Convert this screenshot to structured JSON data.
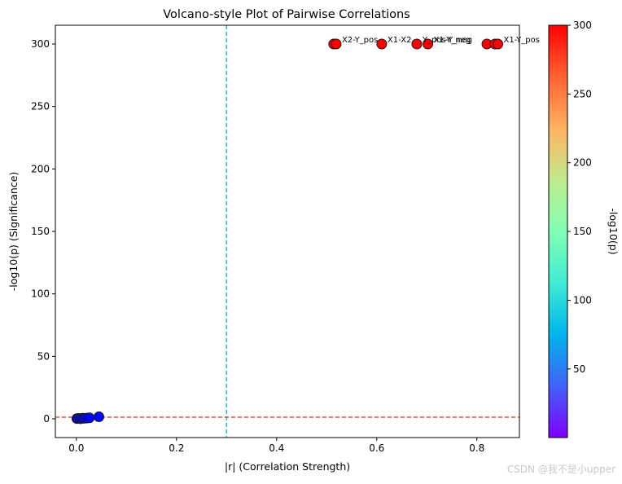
{
  "chart_data": {
    "type": "scatter",
    "title": "Volcano-style Plot of Pairwise Correlations",
    "xlabel": "|r| (Correlation Strength)",
    "ylabel": "-log10(p) (Significance)",
    "xlim": [
      -0.042,
      0.885
    ],
    "ylim": [
      -15,
      315
    ],
    "xticks": [
      0.0,
      0.2,
      0.4,
      0.6,
      0.8
    ],
    "xtick_labels": [
      "0.0",
      "0.2",
      "0.4",
      "0.6",
      "0.8"
    ],
    "yticks": [
      0,
      50,
      100,
      150,
      200,
      250,
      300
    ],
    "ytick_labels": [
      "0",
      "50",
      "100",
      "150",
      "200",
      "250",
      "300"
    ],
    "vline": {
      "x": 0.3,
      "color": "#17becf",
      "style": "dashed"
    },
    "hline": {
      "y": 1.3,
      "color": "#d62728",
      "style": "dashed"
    },
    "points": [
      {
        "x": 0.514,
        "y": 300,
        "label": ""
      },
      {
        "x": 0.519,
        "y": 300,
        "label": "X2-Y_pos"
      },
      {
        "x": 0.61,
        "y": 300,
        "label": "X1-X2"
      },
      {
        "x": 0.68,
        "y": 300,
        "label": "Y_pos-Y_neg"
      },
      {
        "x": 0.702,
        "y": 300,
        "label": "X1-Y_neg"
      },
      {
        "x": 0.82,
        "y": 300,
        "label": ""
      },
      {
        "x": 0.836,
        "y": 300,
        "label": ""
      },
      {
        "x": 0.842,
        "y": 300,
        "label": "X1-Y_pos"
      },
      {
        "x": 0.001,
        "y": 0.2,
        "label": ""
      },
      {
        "x": 0.004,
        "y": 0.3,
        "label": ""
      },
      {
        "x": 0.008,
        "y": 0.1,
        "label": ""
      },
      {
        "x": 0.012,
        "y": 0.5,
        "label": ""
      },
      {
        "x": 0.015,
        "y": 0.4,
        "label": ""
      },
      {
        "x": 0.021,
        "y": 0.6,
        "label": ""
      },
      {
        "x": 0.026,
        "y": 0.8,
        "label": ""
      },
      {
        "x": 0.045,
        "y": 1.6,
        "label": ""
      }
    ],
    "colorbar": {
      "label": "-log10(p)",
      "min": 0.1,
      "max": 300,
      "ticks": [
        50,
        100,
        150,
        200,
        250,
        300
      ],
      "tick_labels": [
        "50",
        "100",
        "150",
        "200",
        "250",
        "300"
      ],
      "colormap": "rainbow"
    }
  },
  "watermark": "CSDN @我不是小upper"
}
